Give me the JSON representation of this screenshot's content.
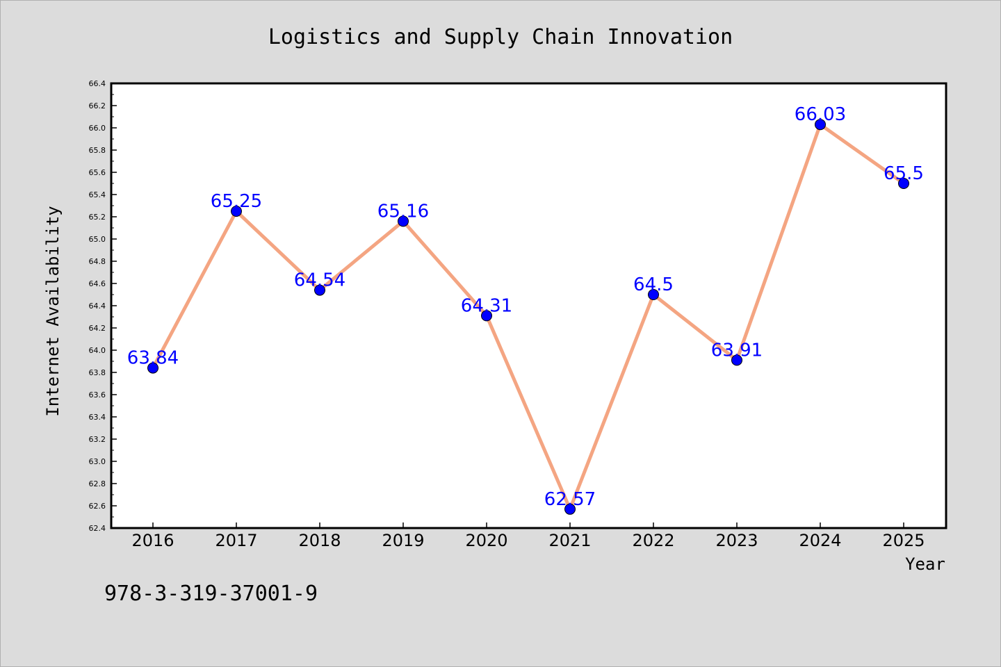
{
  "chart_data": {
    "type": "line",
    "title": "Logistics and Supply Chain Innovation",
    "xlabel": "Year",
    "ylabel": "Internet Availability",
    "categories": [
      "2016",
      "2017",
      "2018",
      "2019",
      "2020",
      "2021",
      "2022",
      "2023",
      "2024",
      "2025"
    ],
    "values": [
      63.84,
      65.25,
      64.54,
      65.16,
      64.31,
      62.57,
      64.5,
      63.91,
      66.03,
      65.5
    ],
    "data_labels": [
      "63.84",
      "65.25",
      "64.54",
      "65.16",
      "64.31",
      "62.57",
      "64.5",
      "63.91",
      "66.03",
      "65.5"
    ],
    "ylim": [
      62.4,
      66.4
    ],
    "yticks": [
      "62.4",
      "62.6",
      "62.8",
      "63.0",
      "63.2",
      "63.4",
      "63.6",
      "63.8",
      "64.0",
      "64.2",
      "64.4",
      "64.6",
      "64.8",
      "65.0",
      "65.2",
      "65.4",
      "65.6",
      "65.8",
      "66.0",
      "66.2",
      "66.4"
    ],
    "grid": false,
    "line_color": "#f4a582",
    "marker_color": "#0000ff",
    "label_color": "#0000ff",
    "background_color": "#dcdcdc",
    "plot_background_color": "#ffffff"
  },
  "footer": {
    "isbn": "978-3-319-37001-9"
  }
}
